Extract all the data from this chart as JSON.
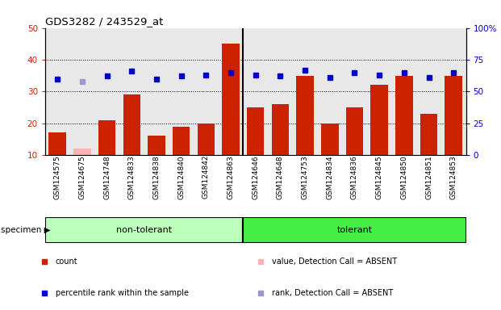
{
  "title": "GDS3282 / 243529_at",
  "categories": [
    "GSM124575",
    "GSM124675",
    "GSM124748",
    "GSM124833",
    "GSM124838",
    "GSM124840",
    "GSM124842",
    "GSM124863",
    "GSM124646",
    "GSM124648",
    "GSM124753",
    "GSM124834",
    "GSM124836",
    "GSM124845",
    "GSM124850",
    "GSM124851",
    "GSM124853"
  ],
  "bar_values": [
    17,
    12,
    21,
    29,
    16,
    19,
    20,
    45,
    25,
    26,
    35,
    20,
    25,
    32,
    35,
    23,
    35
  ],
  "bar_absent": [
    false,
    true,
    false,
    false,
    false,
    false,
    false,
    false,
    false,
    false,
    false,
    false,
    false,
    false,
    false,
    false,
    false
  ],
  "rank_values": [
    60,
    58,
    62,
    66,
    60,
    62,
    63,
    65,
    63,
    62,
    67,
    61,
    65,
    63,
    65,
    61,
    65
  ],
  "rank_absent": [
    false,
    true,
    false,
    false,
    false,
    false,
    false,
    false,
    false,
    false,
    false,
    false,
    false,
    false,
    false,
    false,
    false
  ],
  "non_tolerant_count": 8,
  "tolerant_count": 9,
  "ylim_left": [
    10,
    50
  ],
  "ylim_right": [
    0,
    100
  ],
  "yticks_left": [
    10,
    20,
    30,
    40,
    50
  ],
  "yticks_right": [
    0,
    25,
    50,
    75,
    100
  ],
  "bar_color": "#cc2200",
  "bar_absent_color": "#ffb0b0",
  "rank_color": "#0000cc",
  "rank_absent_color": "#9999cc",
  "bg_color_plot": "#e8e8e8",
  "non_tolerant_color": "#bbffbb",
  "tolerant_color": "#44ee44",
  "legend_items": [
    {
      "label": "count",
      "color": "#cc2200"
    },
    {
      "label": "percentile rank within the sample",
      "color": "#0000cc"
    },
    {
      "label": "value, Detection Call = ABSENT",
      "color": "#ffb0b0"
    },
    {
      "label": "rank, Detection Call = ABSENT",
      "color": "#9999cc"
    }
  ]
}
